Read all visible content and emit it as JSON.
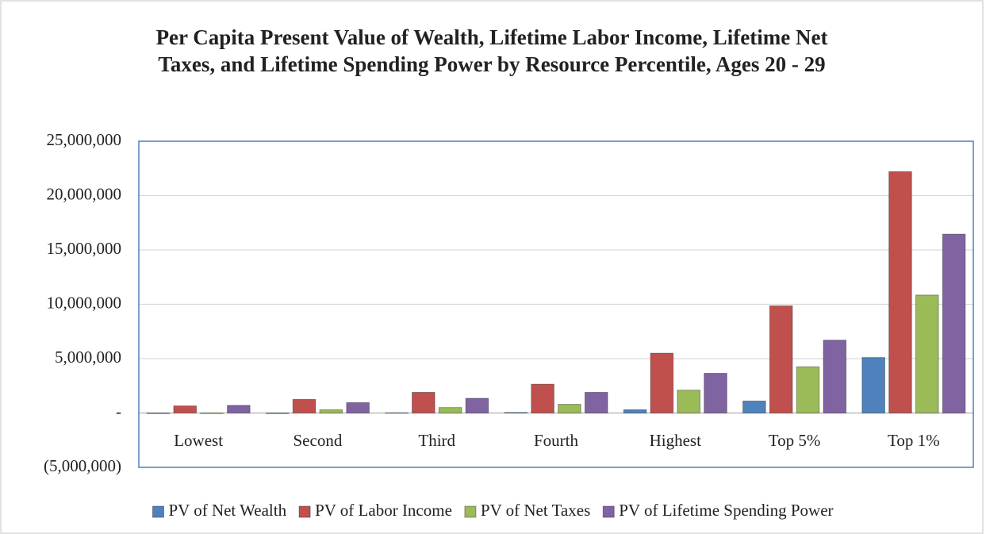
{
  "chart_data": {
    "type": "bar",
    "title": "Per Capita Present Value of Wealth, Lifetime Labor Income, Lifetime Net Taxes, and Lifetime Spending Power by Resource Percentile, Ages 20 - 29",
    "categories": [
      "Lowest",
      "Second",
      "Third",
      "Fourth",
      "Highest",
      "Top 5%",
      "Top 1%"
    ],
    "series": [
      {
        "name": "PV of Net Wealth",
        "color": "#4f81bd",
        "values": [
          -50000,
          -50000,
          20000,
          50000,
          300000,
          1100000,
          5100000
        ]
      },
      {
        "name": "PV of Labor Income",
        "color": "#c0504d",
        "values": [
          650000,
          1250000,
          1900000,
          2650000,
          5500000,
          9850000,
          22200000
        ]
      },
      {
        "name": "PV of Net Taxes",
        "color": "#9bbb59",
        "values": [
          -50000,
          300000,
          500000,
          800000,
          2100000,
          4250000,
          10850000
        ]
      },
      {
        "name": "PV of Lifetime Spending Power",
        "color": "#8064a2",
        "values": [
          700000,
          950000,
          1350000,
          1900000,
          3650000,
          6700000,
          16450000
        ]
      }
    ],
    "ylim": [
      -5000000,
      25000000
    ],
    "yticks": [
      {
        "value": -5000000,
        "label": "(5,000,000)"
      },
      {
        "value": 0,
        "label": "-"
      },
      {
        "value": 5000000,
        "label": "5,000,000"
      },
      {
        "value": 10000000,
        "label": "10,000,000"
      },
      {
        "value": 15000000,
        "label": "15,000,000"
      },
      {
        "value": 20000000,
        "label": "20,000,000"
      },
      {
        "value": 25000000,
        "label": "25,000,000"
      }
    ],
    "grid": true,
    "legend": "bottom"
  }
}
